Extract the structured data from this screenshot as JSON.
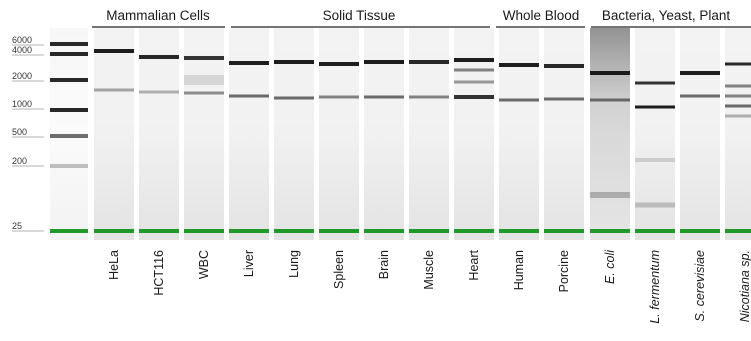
{
  "groups": [
    {
      "name": "Mammalian Cells"
    },
    {
      "name": "Solid Tissue"
    },
    {
      "name": "Whole Blood"
    },
    {
      "name": "Bacteria, Yeast, Plant"
    }
  ],
  "ladder": [
    "6000",
    "4000",
    "2000",
    "1000",
    "500",
    "200",
    "25"
  ],
  "lanes": [
    {
      "label": "HeLa",
      "italic": false
    },
    {
      "label": "HCT116",
      "italic": false
    },
    {
      "label": "WBC",
      "italic": false
    },
    {
      "label": "Liver",
      "italic": false
    },
    {
      "label": "Lung",
      "italic": false
    },
    {
      "label": "Spleen",
      "italic": false
    },
    {
      "label": "Brain",
      "italic": false
    },
    {
      "label": "Muscle",
      "italic": false
    },
    {
      "label": "Heart",
      "italic": false
    },
    {
      "label": "Human",
      "italic": false
    },
    {
      "label": "Porcine",
      "italic": false
    },
    {
      "label": "E. coli",
      "italic": true
    },
    {
      "label": "L. fermentum",
      "italic": true
    },
    {
      "label": "S. cerevisiae",
      "italic": true
    },
    {
      "label": "Nicotiana sp.",
      "italic": true
    }
  ],
  "colors": {
    "marker_band": "#1f9a2a",
    "band": "#111111"
  }
}
